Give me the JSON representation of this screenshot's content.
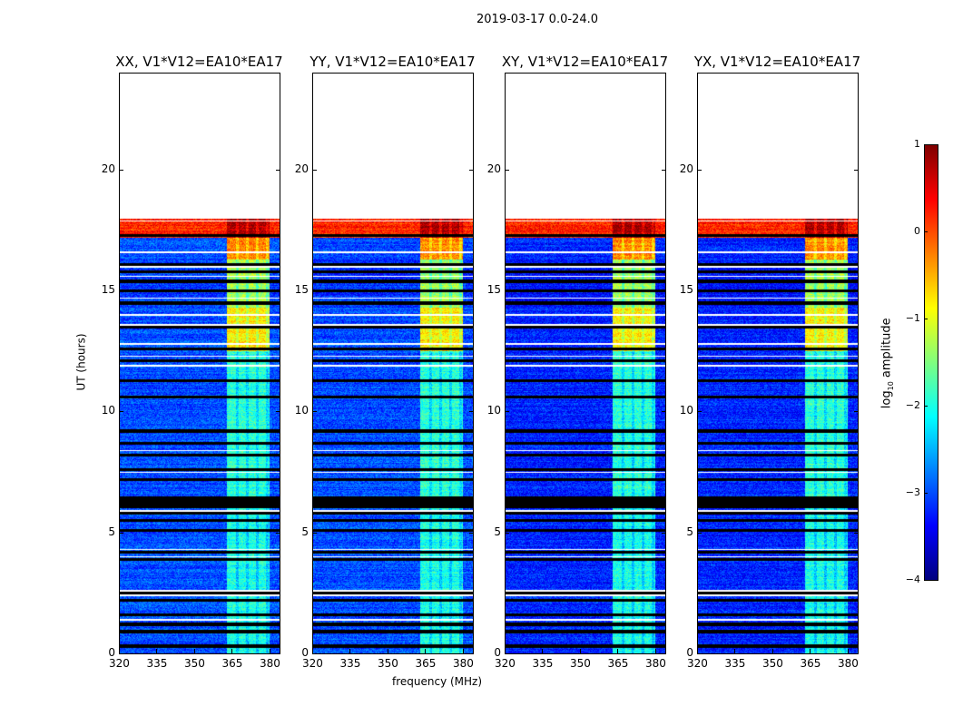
{
  "chart_data": {
    "type": "heatmap",
    "suptitle": "2019-03-17 0.0-24.0",
    "xlabel": "frequency (MHz)",
    "ylabel": "UT (hours)",
    "xlim": [
      320,
      384
    ],
    "ylim": [
      0,
      24
    ],
    "xticks": [
      "320",
      "335",
      "350",
      "365",
      "380"
    ],
    "xtick_values": [
      320,
      335,
      350,
      365,
      380
    ],
    "yticks": [
      "0",
      "5",
      "10",
      "15",
      "20"
    ],
    "ytick_values": [
      0,
      5,
      10,
      15,
      20
    ],
    "panels": [
      {
        "title": "XX, V1*V12=EA10*EA17"
      },
      {
        "title": "YY, V1*V12=EA10*EA17"
      },
      {
        "title": "XY, V1*V12=EA10*EA17"
      },
      {
        "title": "YX, V1*V12=EA10*EA17"
      }
    ],
    "colorbar": {
      "label_prefix": "log",
      "label_sub": "10",
      "label_suffix": " amplitude",
      "vmin": -4,
      "vmax": 1,
      "ticks": [
        "1",
        "0",
        "−1",
        "−2",
        "−3",
        "−4"
      ],
      "tick_values": [
        1,
        0,
        -1,
        -2,
        -3,
        -4
      ],
      "colormap": "jet"
    },
    "data_end_ut": 18.0,
    "rfi_band_mhz": [
      363,
      380
    ],
    "segments": [
      {
        "ut": [
          0,
          6.0
        ],
        "background": -3.0,
        "band": -2.0
      },
      {
        "ut": [
          6.0,
          6.5
        ],
        "flagged": true
      },
      {
        "ut": [
          6.5,
          12.5
        ],
        "background": -3.0,
        "band": -1.9
      },
      {
        "ut": [
          12.5,
          14.3
        ],
        "background": -3.0,
        "band": -0.8
      },
      {
        "ut": [
          14.3,
          16.3
        ],
        "background": -3.1,
        "band": -1.3
      },
      {
        "ut": [
          16.3,
          17.2
        ],
        "background": -3.0,
        "band": -0.3
      },
      {
        "ut": [
          17.2,
          18.0
        ],
        "background": 0.2,
        "band": 0.8
      }
    ],
    "flagged_rows_ut": [
      0.3,
      0.9,
      1.2,
      1.6,
      2.2,
      2.5,
      3.9,
      4.2,
      5.1,
      5.5,
      5.8,
      7.2,
      7.6,
      8.2,
      8.7,
      9.2,
      10.6,
      11.3,
      12.1,
      12.6,
      13.5,
      14.5,
      15.0,
      15.4,
      15.8,
      16.1,
      17.3
    ],
    "gap_rows_ut": [
      1.4,
      2.4,
      2.6,
      4.0,
      4.3,
      5.9,
      7.5,
      8.4,
      11.9,
      12.3,
      12.8,
      13.6,
      14.0,
      14.7,
      15.6,
      16.0,
      16.6,
      17.9
    ]
  }
}
